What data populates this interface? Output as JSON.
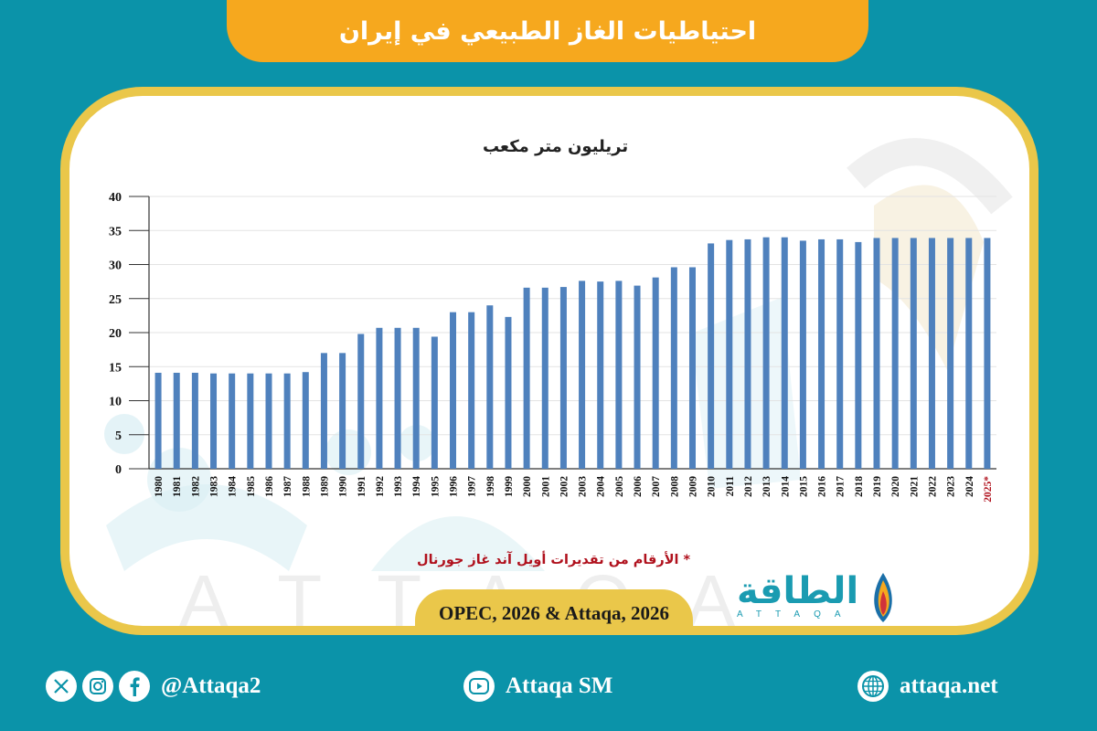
{
  "header": {
    "title": "احتياطيات الغاز الطبيعي  في إيران"
  },
  "chart": {
    "unit_label": "تريليون متر مكعب",
    "footnote": "* الأرقام من تقديرات أويل آند غاز جورنال",
    "source": "OPEC, 2026 & Attaqa, 2026"
  },
  "logo": {
    "arabic": "الطاقة",
    "latin": "ATTAQA"
  },
  "footer": {
    "social_handle": "@Attaqa2",
    "youtube": "Attaqa SM",
    "website": "attaqa.net"
  },
  "colors": {
    "background": "#0b93a9",
    "banner": "#f6a81e",
    "card_border": "#eac74a",
    "bar": "#4f81bd",
    "highlight_label": "#b0111d",
    "logo": "#1a9bb1"
  },
  "chart_data": {
    "type": "bar",
    "title": "احتياطيات الغاز الطبيعي في إيران",
    "ylabel": "تريليون متر مكعب",
    "xlabel": "",
    "ylim": [
      0,
      40
    ],
    "yticks": [
      0,
      5,
      10,
      15,
      20,
      25,
      30,
      35,
      40
    ],
    "grid": true,
    "legend": null,
    "annotations": [
      "2025* — الأرقام من تقديرات أويل آند غاز جورنال"
    ],
    "categories": [
      "1980",
      "1981",
      "1982",
      "1983",
      "1984",
      "1985",
      "1986",
      "1987",
      "1988",
      "1989",
      "1990",
      "1991",
      "1992",
      "1993",
      "1994",
      "1995",
      "1996",
      "1997",
      "1998",
      "1999",
      "2000",
      "2001",
      "2002",
      "2003",
      "2004",
      "2005",
      "2006",
      "2007",
      "2008",
      "2009",
      "2010",
      "2011",
      "2012",
      "2013",
      "2014",
      "2015",
      "2016",
      "2017",
      "2018",
      "2019",
      "2020",
      "2021",
      "2022",
      "2023",
      "2024",
      "2025*"
    ],
    "values": [
      14.1,
      14.1,
      14.1,
      14.0,
      14.0,
      14.0,
      14.0,
      14.0,
      14.2,
      17.0,
      17.0,
      19.8,
      20.7,
      20.7,
      20.7,
      19.4,
      23.0,
      23.0,
      24.0,
      22.3,
      26.6,
      26.6,
      26.7,
      27.6,
      27.5,
      27.6,
      26.9,
      28.1,
      29.6,
      29.6,
      33.1,
      33.6,
      33.7,
      34.0,
      34.0,
      33.5,
      33.7,
      33.7,
      33.3,
      33.9,
      33.9,
      33.9,
      33.9,
      33.9,
      33.9,
      33.9
    ]
  }
}
